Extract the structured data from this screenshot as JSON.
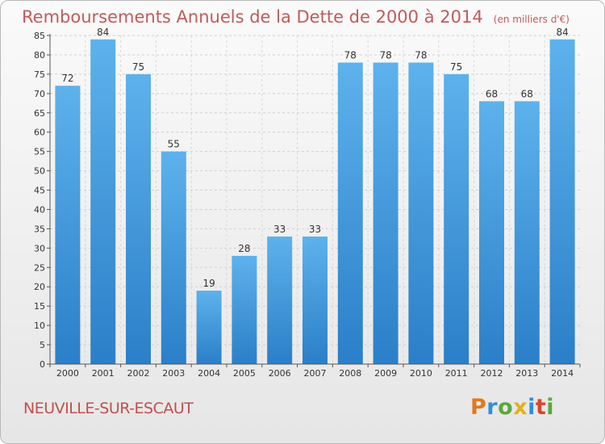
{
  "chart_data": {
    "type": "bar",
    "title": "Remboursements Annuels de la Dette de 2000 à 2014",
    "subtitle": "(en milliers d'€)",
    "categories": [
      "2000",
      "2001",
      "2002",
      "2003",
      "2004",
      "2005",
      "2006",
      "2007",
      "2008",
      "2009",
      "2010",
      "2011",
      "2012",
      "2013",
      "2014"
    ],
    "values": [
      72,
      84,
      75,
      55,
      19,
      28,
      33,
      33,
      78,
      78,
      78,
      75,
      68,
      68,
      84
    ],
    "xlabel": "",
    "ylabel": "",
    "ylim": [
      0,
      85
    ],
    "yticks": [
      0,
      5,
      10,
      15,
      20,
      25,
      30,
      35,
      40,
      45,
      50,
      55,
      60,
      65,
      70,
      75,
      80,
      85
    ],
    "grid": true,
    "bar_color": "#4a9ee0"
  },
  "footer": {
    "commune": "NEUVILLE-SUR-ESCAUT",
    "logo_letters": [
      "P",
      "r",
      "o",
      "x",
      "i",
      "t",
      "i"
    ],
    "logo_colors": [
      "#e07a1e",
      "#2f8fd8",
      "#5aa83b",
      "#e2b21c",
      "#2f8fd8",
      "#d8452f",
      "#5aa83b"
    ]
  }
}
